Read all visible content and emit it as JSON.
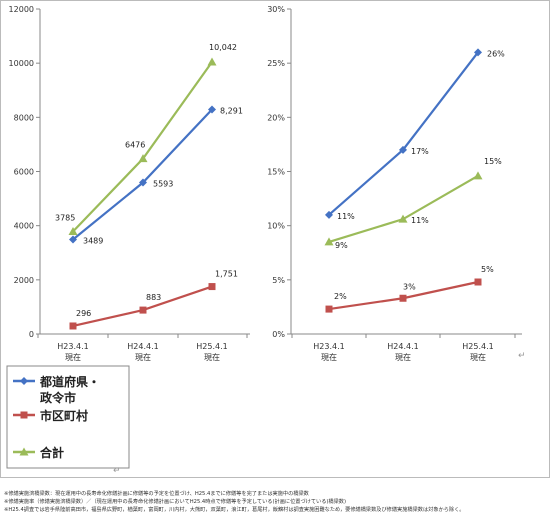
{
  "chart_data": [
    {
      "type": "line",
      "categories": [
        [
          "H23.4.1",
          "現在"
        ],
        [
          "H24.4.1",
          "現在"
        ],
        [
          "H25.4.1",
          "現在"
        ]
      ],
      "ylim": [
        0,
        12000
      ],
      "yticks": [
        "0",
        "2000",
        "4000",
        "6000",
        "8000",
        "10000",
        "12000"
      ],
      "ytick_values": [
        0,
        2000,
        4000,
        6000,
        8000,
        10000,
        12000
      ],
      "grid": false,
      "series": [
        {
          "name": "都道府県・政令市",
          "color": "#4472C4",
          "marker": "diamond",
          "values": [
            3489,
            5593,
            8291
          ],
          "labels": [
            "3489",
            "5593",
            "8,291"
          ]
        },
        {
          "name": "市区町村",
          "color": "#C0504D",
          "marker": "square",
          "values": [
            296,
            883,
            1751
          ],
          "labels": [
            "296",
            "883",
            "1,751"
          ]
        },
        {
          "name": "合計",
          "color": "#9BBB59",
          "marker": "triangle",
          "values": [
            3785,
            6476,
            10042
          ],
          "labels": [
            "3785",
            "6476",
            "10,042"
          ]
        }
      ]
    },
    {
      "type": "line",
      "categories": [
        [
          "H23.4.1",
          "現在"
        ],
        [
          "H24.4.1",
          "現在"
        ],
        [
          "H25.4.1",
          "現在"
        ]
      ],
      "ylim": [
        0,
        30
      ],
      "yticks": [
        "0%",
        "5%",
        "10%",
        "15%",
        "20%",
        "25%",
        "30%"
      ],
      "ytick_values": [
        0,
        5,
        10,
        15,
        20,
        25,
        30
      ],
      "grid": false,
      "series": [
        {
          "name": "都道府県・政令市",
          "color": "#4472C4",
          "marker": "diamond",
          "values": [
            11,
            17,
            26
          ],
          "labels": [
            "11%",
            "17%",
            "26%"
          ]
        },
        {
          "name": "市区町村",
          "color": "#C0504D",
          "marker": "square",
          "values": [
            2.3,
            3.3,
            4.8
          ],
          "labels": [
            "2%",
            "3%",
            "5%"
          ]
        },
        {
          "name": "合計",
          "color": "#9BBB59",
          "marker": "triangle",
          "values": [
            8.5,
            10.6,
            14.6
          ],
          "labels": [
            "9%",
            "11%",
            "15%"
          ]
        }
      ]
    }
  ],
  "legend": {
    "items": [
      {
        "lines": [
          "都道府県・",
          "政令市"
        ],
        "color": "#4472C4",
        "marker": "diamond"
      },
      {
        "lines": [
          "市区町村"
        ],
        "color": "#C0504D",
        "marker": "square"
      },
      {
        "lines": [
          "合計"
        ],
        "color": "#9BBB59",
        "marker": "triangle"
      }
    ]
  },
  "notes": [
    "※修繕実施済橋梁数：現在運用中の長寿命化修繕計画に修繕等の予定を位置づけ、H25.4までに修繕等を完了または実施中の橋梁数",
    "※修繕実施率（修繕実施済橋梁数）／（現在運用中の長寿命化修繕計画においてH25.4時点で修繕等を予定している(計画に位置づけている)橋梁数)",
    "※H25.4調査では岩手県陸前高田市，福島県広野町，楢葉町，富岡町，川内村，大熊町，双葉町，浪江町，葛尾村，飯舘村は調査実施困難なため，要修繕橋梁数及び修繕実施橋梁数は対象から除く。"
  ],
  "para_mark": "↵"
}
